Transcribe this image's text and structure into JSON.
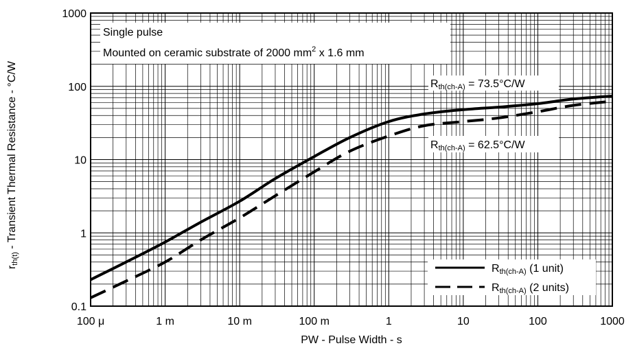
{
  "chart_data": {
    "type": "line",
    "xscale": "log",
    "yscale": "log",
    "xlim": [
      0.0001,
      1000
    ],
    "ylim": [
      0.1,
      1000
    ],
    "grid": true,
    "xlabel": "PW - Pulse Width - s",
    "ylabel_prefix": "r",
    "ylabel_sub": "th(t)",
    "ylabel_rest": " - Transient Thermal Resistance - °C/W",
    "x_ticks": [
      {
        "value": 0.0001,
        "label": "100 μ"
      },
      {
        "value": 0.001,
        "label": "1 m"
      },
      {
        "value": 0.01,
        "label": "10 m"
      },
      {
        "value": 0.1,
        "label": "100 m"
      },
      {
        "value": 1,
        "label": "1"
      },
      {
        "value": 10,
        "label": "10"
      },
      {
        "value": 100,
        "label": "100"
      },
      {
        "value": 1000,
        "label": "1000"
      }
    ],
    "y_ticks": [
      {
        "value": 0.1,
        "label": "0.1"
      },
      {
        "value": 1,
        "label": "1"
      },
      {
        "value": 10,
        "label": "10"
      },
      {
        "value": 100,
        "label": "100"
      },
      {
        "value": 1000,
        "label": "1000"
      }
    ],
    "annotations": {
      "line1": "Single pulse",
      "line2_main": "Mounted on ceramic substrate of 2000 mm",
      "line2_sup": "2",
      "line2_tail": " x 1.6 mm",
      "r1_main": "R",
      "r1_sub": "th(ch-A)",
      "r1_val": " = 73.5°C/W",
      "r2_main": "R",
      "r2_sub": "th(ch-A)",
      "r2_val": " = 62.5°C/W"
    },
    "legend_position": "bottom-right",
    "series": [
      {
        "name_main": "R",
        "name_sub": "th(ch-A)",
        "name_tail": " (1 unit)",
        "style": "solid",
        "x": [
          0.0001,
          0.0003,
          0.001,
          0.003,
          0.01,
          0.03,
          0.1,
          0.3,
          1,
          3,
          10,
          30,
          100,
          300,
          1000
        ],
        "y": [
          0.23,
          0.4,
          0.75,
          1.4,
          2.7,
          5.5,
          11,
          20,
          33,
          42,
          48,
          52,
          58,
          67,
          73.5
        ]
      },
      {
        "name_main": "R",
        "name_sub": "th(ch-A)",
        "name_tail": " (2 units)",
        "style": "dashed",
        "x": [
          0.0001,
          0.0003,
          0.001,
          0.003,
          0.01,
          0.03,
          0.1,
          0.3,
          1,
          3,
          10,
          30,
          100,
          300,
          1000
        ],
        "y": [
          0.13,
          0.22,
          0.4,
          0.8,
          1.6,
          3.2,
          6.8,
          13,
          21,
          29,
          33,
          37,
          45,
          55,
          62.5
        ]
      }
    ]
  }
}
